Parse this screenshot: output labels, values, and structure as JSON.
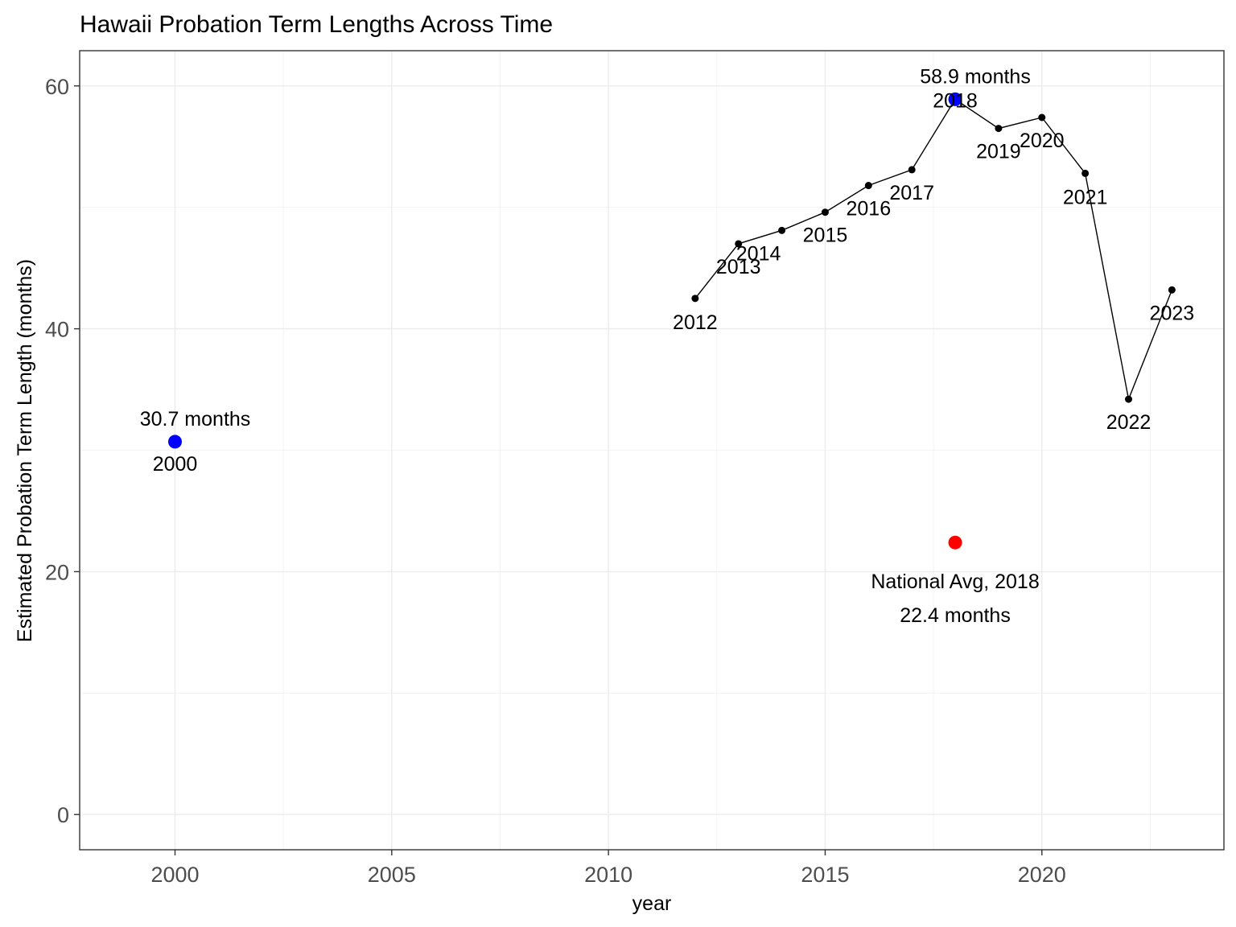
{
  "title": "Hawaii Probation Term Lengths Across Time",
  "chart_data": {
    "type": "line",
    "title": "Hawaii Probation Term Lengths Across Time",
    "xlabel": "year",
    "ylabel": "Estimated Probation Term Length (months)",
    "xlim": [
      1997.8,
      2024.2
    ],
    "ylim": [
      -2.9,
      62.9
    ],
    "x_ticks": [
      2000,
      2005,
      2010,
      2015,
      2020
    ],
    "x_tick_labels": [
      "2000",
      "2005",
      "2010",
      "2015",
      "2020"
    ],
    "y_ticks": [
      0,
      20,
      40,
      60
    ],
    "y_tick_labels": [
      "0",
      "20",
      "40",
      "60"
    ],
    "grid": true,
    "series": [
      {
        "x": [
          2012,
          2013,
          2014,
          2015,
          2016,
          2017,
          2018,
          2019,
          2020,
          2021,
          2022,
          2023
        ],
        "y": [
          42.5,
          47.0,
          48.1,
          49.6,
          51.8,
          53.1,
          58.9,
          56.5,
          57.4,
          52.8,
          34.2,
          43.2
        ],
        "labels": [
          "2012",
          "2013",
          "2014",
          "2015",
          "2016",
          "2017",
          "2018",
          "2019",
          "2020",
          "2021",
          "2022",
          "2023"
        ],
        "color": "#000000"
      }
    ],
    "highlights": [
      {
        "x": 2000,
        "y": 30.7,
        "color": "#0000ff",
        "value_label": "30.7 months",
        "year_label": "2000"
      },
      {
        "x": 2018,
        "y": 58.9,
        "color": "#0000ff",
        "value_label": "58.9 months"
      },
      {
        "x": 2018,
        "y": 22.4,
        "color": "#ff0000",
        "label_line1": "National Avg, 2018",
        "label_line2": "22.4 months"
      }
    ]
  }
}
